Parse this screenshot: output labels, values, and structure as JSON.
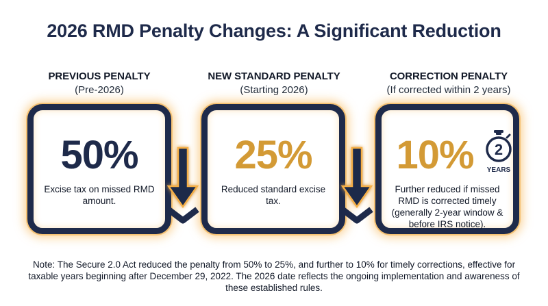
{
  "title": "2026 RMD Penalty Changes: A Significant Reduction",
  "columns": [
    {
      "heading": "PREVIOUS PENALTY",
      "subheading": "(Pre-2026)",
      "percent": "50%",
      "description": "Excise tax on missed RMD amount.",
      "percent_color": "#1e2a4a"
    },
    {
      "heading": "NEW STANDARD PENALTY",
      "subheading": "(Starting 2026)",
      "percent": "25%",
      "description": "Reduced standard excise tax.",
      "percent_color": "#d39a35"
    },
    {
      "heading": "CORRECTION PENALTY",
      "subheading": "(If corrected within 2 years)",
      "percent": "10%",
      "description": "Further reduced if missed RMD is corrected timely (generally 2-year window & before IRS notice).",
      "percent_color": "#d39a35"
    }
  ],
  "timer_badge": {
    "number": "2",
    "label": "YEARS",
    "icon": "stopwatch-icon"
  },
  "note": "Note: The Secure 2.0 Act reduced the penalty from 50% to 25%, and further to 10% for timely corrections, effective for taxable years beginning after December 29, 2022. The 2026 date reflects the ongoing implementation and awareness of these established rules.",
  "colors": {
    "navy": "#1e2a4a",
    "gold": "#d39a35",
    "glow": "#f5af46"
  }
}
